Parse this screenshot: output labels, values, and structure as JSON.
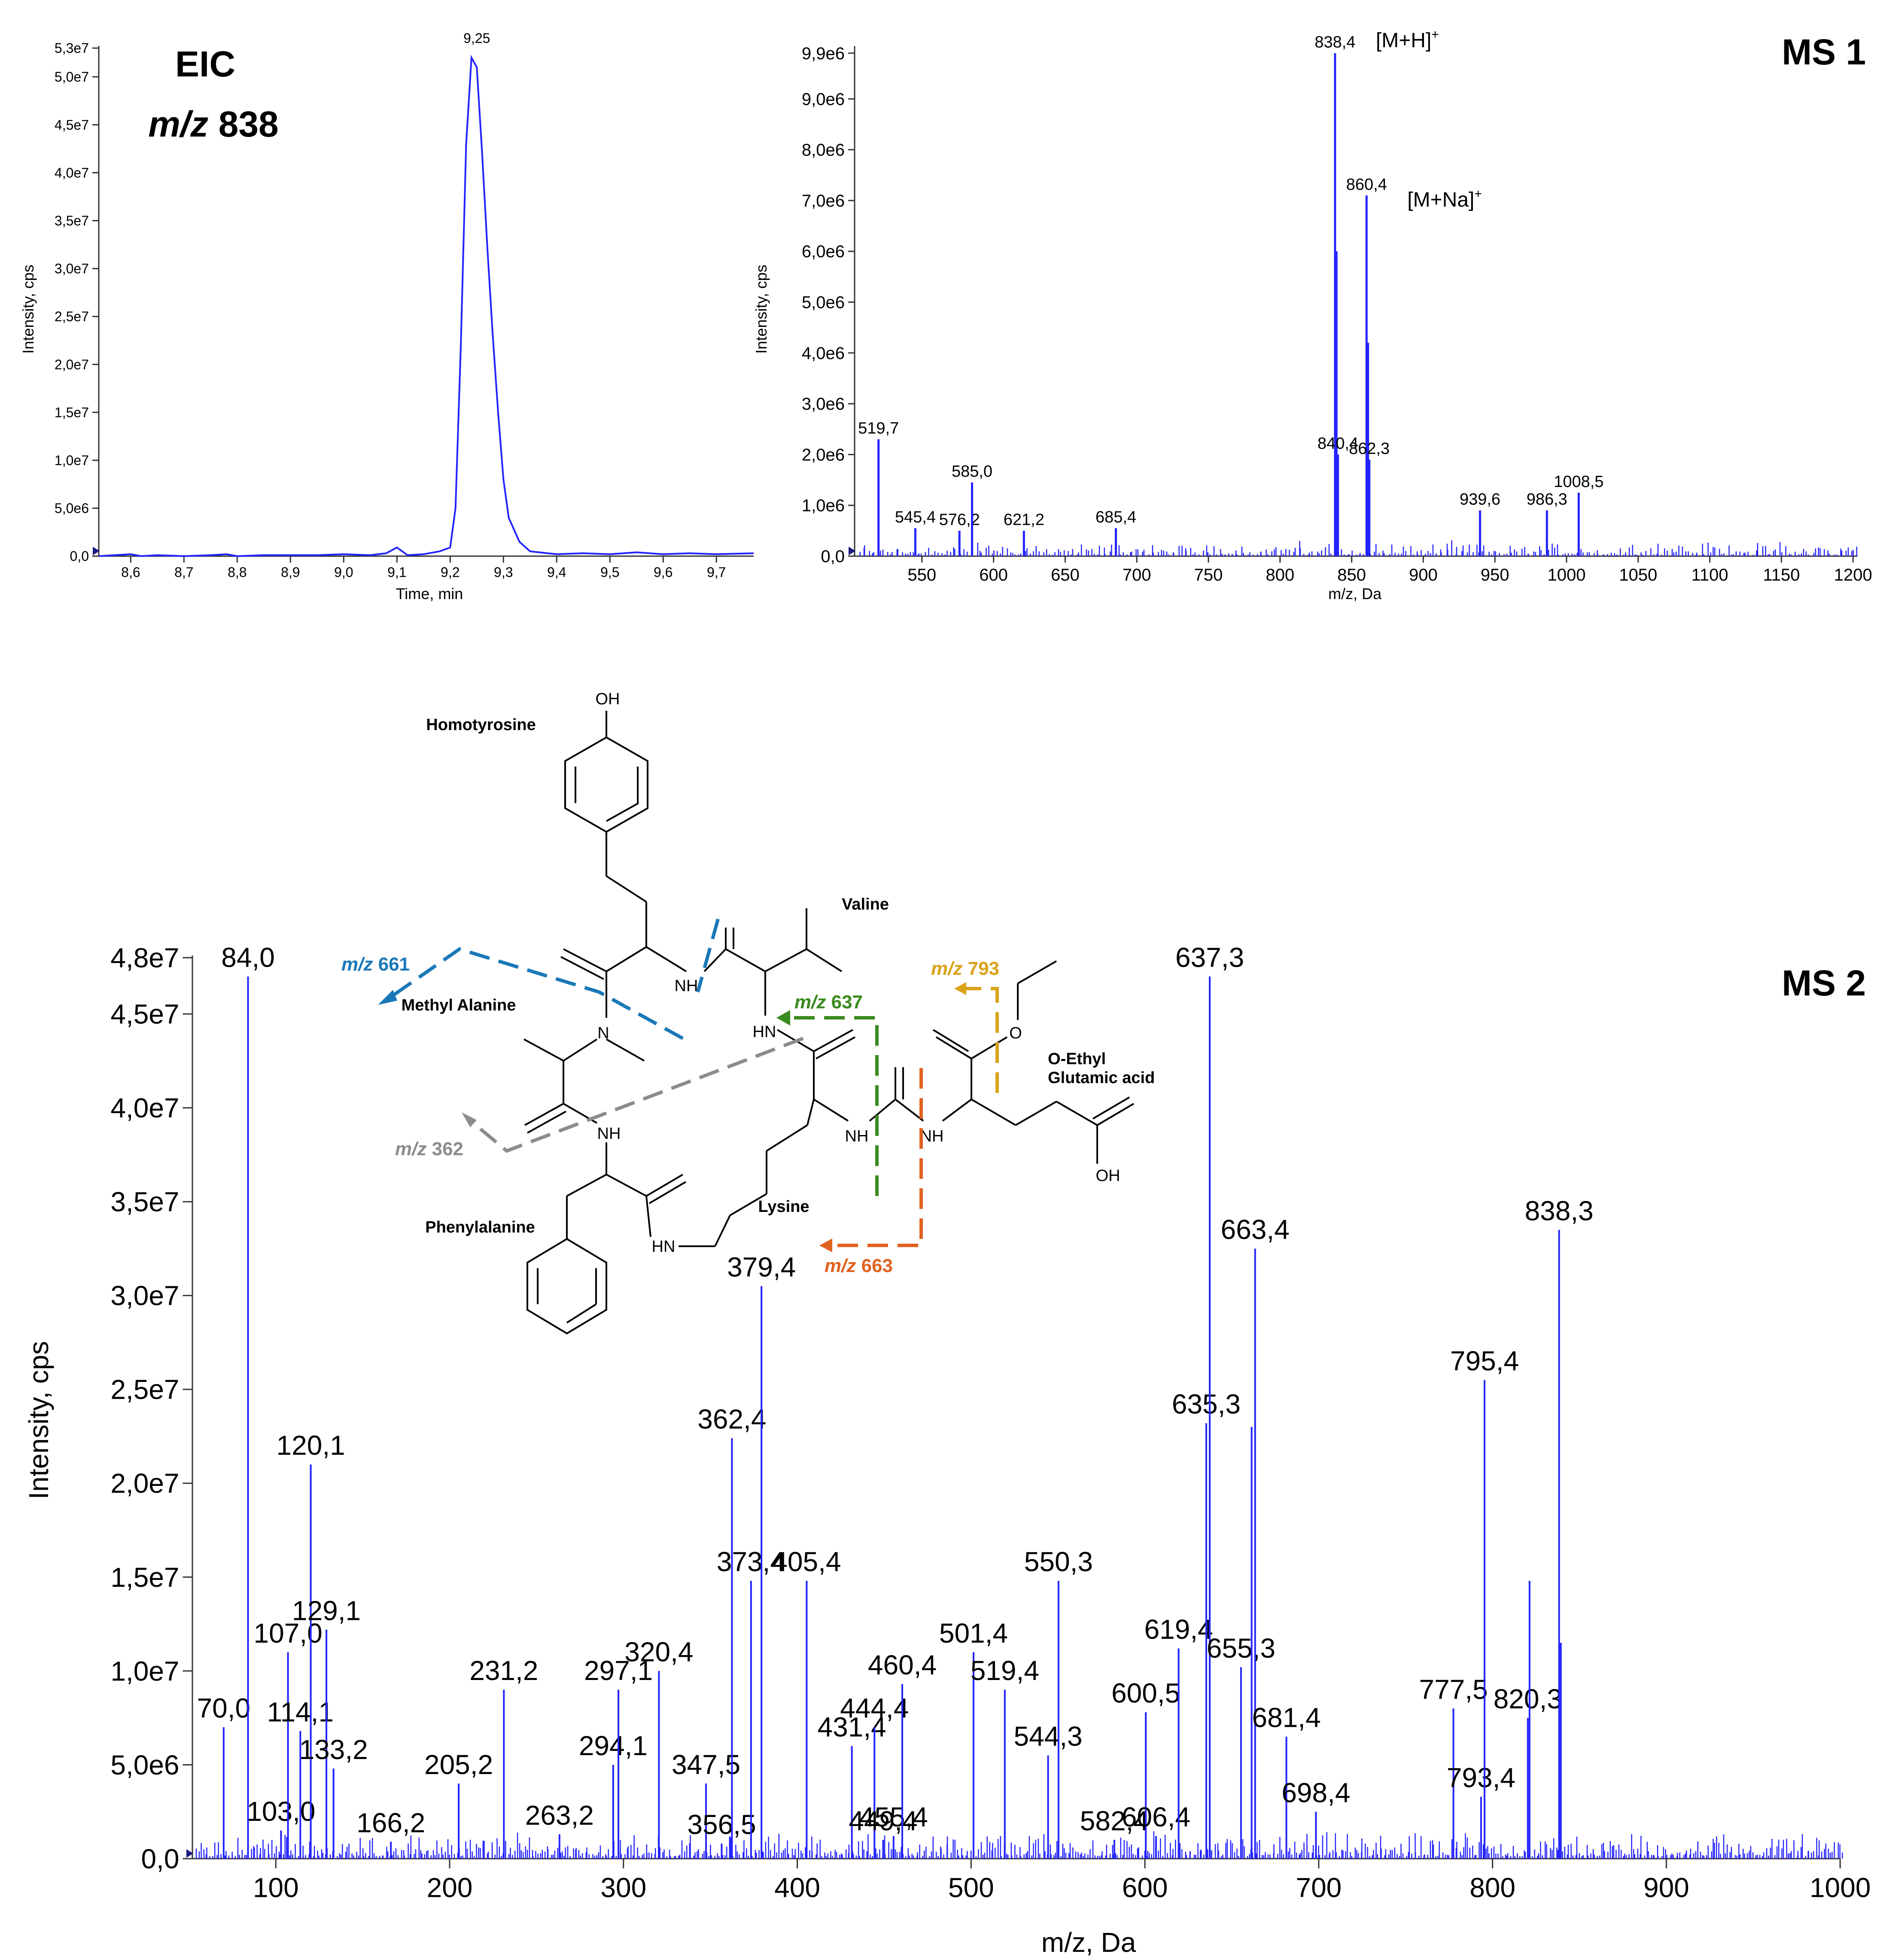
{
  "chart_data": [
    {
      "id": "eic",
      "type": "line",
      "title": "EIC",
      "subtitle_italic": "m/z",
      "subtitle_value": "838",
      "xlabel": "Time, min",
      "ylabel": "Intensity, cps",
      "xlim": [
        8.54,
        9.77
      ],
      "ylim": [
        0,
        53000000.0
      ],
      "x_ticks": [
        8.6,
        8.7,
        8.8,
        8.9,
        9.0,
        9.1,
        9.2,
        9.3,
        9.4,
        9.5,
        9.6,
        9.7
      ],
      "x_tick_labels": [
        "8,6",
        "8,7",
        "8,8",
        "8,9",
        "9,0",
        "9,1",
        "9,2",
        "9,3",
        "9,4",
        "9,5",
        "9,6",
        "9,7"
      ],
      "y_ticks": [
        0,
        5000000.0,
        10000000.0,
        15000000.0,
        20000000.0,
        25000000.0,
        30000000.0,
        35000000.0,
        40000000.0,
        45000000.0,
        50000000.0,
        53000000.0
      ],
      "y_tick_labels": [
        "0,0",
        "5,0e6",
        "1,0e7",
        "1,5e7",
        "2,0e7",
        "2,5e7",
        "3,0e7",
        "3,5e7",
        "4,0e7",
        "4,5e7",
        "5,0e7",
        "5,3e7"
      ],
      "x": [
        8.54,
        8.6,
        8.62,
        8.65,
        8.7,
        8.75,
        8.78,
        8.8,
        8.85,
        8.9,
        8.95,
        9.0,
        9.05,
        9.08,
        9.1,
        9.12,
        9.15,
        9.18,
        9.2,
        9.21,
        9.22,
        9.23,
        9.24,
        9.25,
        9.26,
        9.27,
        9.28,
        9.29,
        9.3,
        9.31,
        9.33,
        9.35,
        9.4,
        9.45,
        9.5,
        9.55,
        9.6,
        9.65,
        9.7,
        9.77
      ],
      "values": [
        0,
        200000.0,
        0,
        100000.0,
        0,
        100000.0,
        200000.0,
        0,
        100000.0,
        100000.0,
        100000.0,
        200000.0,
        100000.0,
        300000.0,
        900000.0,
        100000.0,
        200000.0,
        500000.0,
        900000.0,
        5000000.0,
        22000000.0,
        43000000.0,
        52000000.0,
        51000000.0,
        42000000.0,
        32000000.0,
        23000000.0,
        15000000.0,
        8000000.0,
        4000000.0,
        1500000.0,
        500000.0,
        200000.0,
        300000.0,
        200000.0,
        400000.0,
        200000.0,
        300000.0,
        200000.0,
        300000.0
      ],
      "peak_labels": [
        {
          "x": 9.25,
          "label": "9,25"
        }
      ]
    },
    {
      "id": "ms1",
      "type": "bar",
      "title": "MS 1",
      "xlabel": "m/z, Da",
      "ylabel": "Intensity, cps",
      "xlim": [
        503,
        1203
      ],
      "ylim": [
        0,
        10000000.0
      ],
      "x_ticks": [
        550,
        600,
        650,
        700,
        750,
        800,
        850,
        900,
        950,
        1000,
        1050,
        1100,
        1150,
        1200
      ],
      "x_tick_labels": [
        "550",
        "600",
        "650",
        "700",
        "750",
        "800",
        "850",
        "900",
        "950",
        "1000",
        "1050",
        "1100",
        "1150",
        "1200"
      ],
      "y_ticks": [
        0,
        1000000.0,
        2000000.0,
        3000000.0,
        4000000.0,
        5000000.0,
        6000000.0,
        7000000.0,
        8000000.0,
        9000000.0,
        9900000.0
      ],
      "y_tick_labels": [
        "0,0",
        "1,0e6",
        "2,0e6",
        "3,0e6",
        "4,0e6",
        "5,0e6",
        "6,0e6",
        "7,0e6",
        "8,0e6",
        "9,0e6",
        "9,9e6"
      ],
      "peaks": [
        {
          "mz": 519.7,
          "intensity": 2300000.0,
          "label": "519,7"
        },
        {
          "mz": 545.4,
          "intensity": 550000.0,
          "label": "545,4"
        },
        {
          "mz": 576.2,
          "intensity": 500000.0,
          "label": "576,2"
        },
        {
          "mz": 585.0,
          "intensity": 1450000.0,
          "label": "585,0"
        },
        {
          "mz": 621.2,
          "intensity": 500000.0,
          "label": "621,2"
        },
        {
          "mz": 685.4,
          "intensity": 550000.0,
          "label": "685,4"
        },
        {
          "mz": 838.4,
          "intensity": 9900000.0,
          "label": "838,4"
        },
        {
          "mz": 839.4,
          "intensity": 6000000.0,
          "label": ""
        },
        {
          "mz": 840.4,
          "intensity": 2000000.0,
          "label": "840,4"
        },
        {
          "mz": 860.4,
          "intensity": 7100000.0,
          "label": "860,4"
        },
        {
          "mz": 861.4,
          "intensity": 4200000.0,
          "label": ""
        },
        {
          "mz": 862.3,
          "intensity": 1900000.0,
          "label": "862,3"
        },
        {
          "mz": 939.6,
          "intensity": 900000.0,
          "label": "939,6"
        },
        {
          "mz": 986.3,
          "intensity": 900000.0,
          "label": "986,3"
        },
        {
          "mz": 1008.5,
          "intensity": 1250000.0,
          "label": "1008,5"
        }
      ],
      "ion_annotations": [
        {
          "mz": 838.4,
          "label": "[M+H]",
          "sup": "+"
        },
        {
          "mz": 860.4,
          "label": "[M+Na]",
          "sup": "+"
        }
      ]
    },
    {
      "id": "ms2",
      "type": "bar",
      "title": "MS 2",
      "xlabel": "m/z, Da",
      "ylabel": "Intensity, cps",
      "xlim": [
        52,
        1000
      ],
      "ylim": [
        0,
        48000000.0
      ],
      "x_ticks": [
        100,
        200,
        300,
        400,
        500,
        600,
        700,
        800,
        900,
        1000
      ],
      "x_tick_labels": [
        "100",
        "200",
        "300",
        "400",
        "500",
        "600",
        "700",
        "800",
        "900",
        "1000"
      ],
      "y_ticks": [
        0,
        5000000.0,
        10000000.0,
        15000000.0,
        20000000.0,
        25000000.0,
        30000000.0,
        35000000.0,
        40000000.0,
        45000000.0,
        48000000.0
      ],
      "y_tick_labels": [
        "0,0",
        "5,0e6",
        "1,0e7",
        "1,5e7",
        "2,0e7",
        "2,5e7",
        "3,0e7",
        "3,5e7",
        "4,0e7",
        "4,5e7",
        "4,8e7"
      ],
      "peaks": [
        {
          "mz": 70.0,
          "intensity": 7000000.0,
          "label": "70,0"
        },
        {
          "mz": 84.0,
          "intensity": 47000000.0,
          "label": "84,0"
        },
        {
          "mz": 103.0,
          "intensity": 1500000.0,
          "label": "103,0"
        },
        {
          "mz": 107.0,
          "intensity": 11000000.0,
          "label": "107,0"
        },
        {
          "mz": 114.1,
          "intensity": 6800000.0,
          "label": "114,1"
        },
        {
          "mz": 120.1,
          "intensity": 21000000.0,
          "label": "120,1"
        },
        {
          "mz": 129.1,
          "intensity": 12200000.0,
          "label": "129,1"
        },
        {
          "mz": 133.2,
          "intensity": 4800000.0,
          "label": "133,2"
        },
        {
          "mz": 166.2,
          "intensity": 900000.0,
          "label": "166,2"
        },
        {
          "mz": 205.2,
          "intensity": 4000000.0,
          "label": "205,2"
        },
        {
          "mz": 231.2,
          "intensity": 9000000.0,
          "label": "231,2"
        },
        {
          "mz": 263.2,
          "intensity": 1300000.0,
          "label": "263,2"
        },
        {
          "mz": 294.1,
          "intensity": 5000000.0,
          "label": "294,1"
        },
        {
          "mz": 297.1,
          "intensity": 9000000.0,
          "label": "297,1"
        },
        {
          "mz": 320.4,
          "intensity": 10000000.0,
          "label": "320,4"
        },
        {
          "mz": 347.5,
          "intensity": 4000000.0,
          "label": "347,5"
        },
        {
          "mz": 356.5,
          "intensity": 800000.0,
          "label": "356,5"
        },
        {
          "mz": 362.4,
          "intensity": 22400000.0,
          "label": "362,4"
        },
        {
          "mz": 373.4,
          "intensity": 14800000.0,
          "label": "373,4"
        },
        {
          "mz": 379.4,
          "intensity": 30500000.0,
          "label": "379,4"
        },
        {
          "mz": 405.4,
          "intensity": 14800000.0,
          "label": "405,4"
        },
        {
          "mz": 431.4,
          "intensity": 6000000.0,
          "label": "431,4"
        },
        {
          "mz": 444.4,
          "intensity": 7000000.0,
          "label": "444,4"
        },
        {
          "mz": 449.4,
          "intensity": 1000000.0,
          "label": "449,4"
        },
        {
          "mz": 455.4,
          "intensity": 1200000.0,
          "label": "455,4"
        },
        {
          "mz": 460.4,
          "intensity": 9300000.0,
          "label": "460,4"
        },
        {
          "mz": 501.4,
          "intensity": 11000000.0,
          "label": "501,4"
        },
        {
          "mz": 519.4,
          "intensity": 9000000.0,
          "label": "519,4"
        },
        {
          "mz": 544.3,
          "intensity": 5500000.0,
          "label": "544,3"
        },
        {
          "mz": 550.3,
          "intensity": 14800000.0,
          "label": "550,3"
        },
        {
          "mz": 582.4,
          "intensity": 1000000.0,
          "label": "582,4"
        },
        {
          "mz": 600.5,
          "intensity": 7800000.0,
          "label": "600,5"
        },
        {
          "mz": 606.4,
          "intensity": 1200000.0,
          "label": "606,4"
        },
        {
          "mz": 619.4,
          "intensity": 11200000.0,
          "label": "619,4"
        },
        {
          "mz": 635.3,
          "intensity": 23200000.0,
          "label": "635,3"
        },
        {
          "mz": 637.3,
          "intensity": 47000000.0,
          "label": "637,3"
        },
        {
          "mz": 655.3,
          "intensity": 10200000.0,
          "label": "655,3"
        },
        {
          "mz": 661.4,
          "intensity": 23000000.0,
          "label": ""
        },
        {
          "mz": 663.4,
          "intensity": 32500000.0,
          "label": "663,4"
        },
        {
          "mz": 681.4,
          "intensity": 6500000.0,
          "label": "681,4"
        },
        {
          "mz": 698.4,
          "intensity": 2500000.0,
          "label": "698,4"
        },
        {
          "mz": 777.5,
          "intensity": 8000000.0,
          "label": "777,5"
        },
        {
          "mz": 793.4,
          "intensity": 3300000.0,
          "label": "793,4"
        },
        {
          "mz": 795.4,
          "intensity": 25500000.0,
          "label": "795,4"
        },
        {
          "mz": 820.3,
          "intensity": 7500000.0,
          "label": "820,3"
        },
        {
          "mz": 821.3,
          "intensity": 14800000.0,
          "label": ""
        },
        {
          "mz": 838.3,
          "intensity": 33500000.0,
          "label": "838,3"
        },
        {
          "mz": 839.3,
          "intensity": 11500000.0,
          "label": ""
        }
      ]
    }
  ],
  "structure": {
    "residues": [
      "Homotyrosine",
      "Valine",
      "Methyl Alanine",
      "O-Ethyl",
      "Glutamic acid",
      "Phenylalanine",
      "Lysine"
    ],
    "atoms": {
      "oh_top": "OH",
      "oh_bottom": "OH",
      "nh1": "NH",
      "hn1": "HN",
      "n_methyl": "N",
      "nh2": "NH",
      "nh3": "NH",
      "nh4": "NH",
      "hn2": "HN",
      "o": "O"
    },
    "fragments": [
      {
        "prefix": "m/z",
        "value": "661",
        "color": "#1a78b8"
      },
      {
        "prefix": "m/z",
        "value": "637",
        "color": "#3a8a1e"
      },
      {
        "prefix": "m/z",
        "value": "793",
        "color": "#d9a31a"
      },
      {
        "prefix": "m/z",
        "value": "362",
        "color": "#8c8c8c"
      },
      {
        "prefix": "m/z",
        "value": "663",
        "color": "#e0621f"
      }
    ]
  },
  "colors": {
    "spectrum": "#2323ff",
    "axis": "#333333",
    "text": "#000000"
  }
}
